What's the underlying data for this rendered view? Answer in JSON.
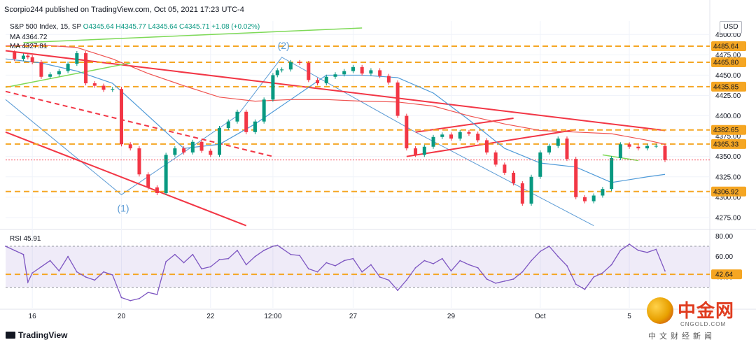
{
  "header": {
    "published": "Scorpio244 published on TradingView.com, Oct 05, 2021 17:23 UTC-4",
    "symbol": "S&P 500 Index, 15, SP",
    "ohlc": "O4345.64  H4345.77  L4345.64  C4345.71",
    "change": "+1.08 (+0.02%)",
    "ma1": "MA  4364.72",
    "ma2": "MA  4327.81",
    "currency": "USD"
  },
  "footer": {
    "brand": "TradingView"
  },
  "watermark": {
    "name": "中金网",
    "site": "CNGOLD.COM",
    "tagline": "中文财经新闻"
  },
  "annotations": {
    "wave1": "(1)",
    "wave2": "(2)"
  },
  "colors": {
    "up": "#089981",
    "down": "#f23645",
    "ma_blue": "#4e9ad8",
    "ma_red": "#ef5350",
    "trendline": "#f23645",
    "channel": "#5b9bd5",
    "support": "#f5a623",
    "rsi": "#7e57c2",
    "green_line": "#7ed957",
    "badge": "#f5a623"
  },
  "chart_data": [
    {
      "type": "line",
      "title": "S&P 500 Index, 15, SP",
      "price_axis": {
        "ylim": [
          4262,
          4508
        ],
        "ticks": [
          4500,
          4475,
          4450,
          4425,
          4400,
          4375,
          4350,
          4325,
          4300,
          4275
        ],
        "tick_labels": [
          "4500.00",
          "4475.00",
          "4450.00",
          "4425.00",
          "4400.00",
          "4375.00",
          "4350.00",
          "4325.00",
          "4300.00",
          "4275.00"
        ]
      },
      "x_axis": {
        "tick_labels": [
          "16",
          "20",
          "22",
          "12:00",
          "27",
          "29",
          "Oct",
          "5"
        ],
        "tick_positions": [
          3,
          13,
          23,
          30,
          39,
          50,
          60,
          70
        ]
      },
      "series": [
        {
          "name": "",
          "kind": "price",
          "x": [
            0,
            1,
            2,
            2.5,
            3,
            4,
            5,
            6,
            7,
            8,
            9,
            10,
            11,
            12,
            13,
            14,
            15,
            16,
            17,
            18,
            19,
            20,
            21,
            22,
            23,
            24,
            25,
            26,
            27,
            28,
            29,
            30,
            30.5,
            31,
            32,
            33,
            34,
            35,
            36,
            37,
            38,
            39,
            40,
            41,
            42,
            43,
            44,
            45,
            46,
            47,
            48,
            49,
            50,
            51,
            52,
            53,
            54,
            55,
            56,
            57,
            58,
            59,
            60,
            61,
            62,
            63,
            64,
            65,
            66,
            67,
            68,
            69,
            70,
            71,
            72,
            73,
            74
          ],
          "y": [
            4478,
            4470,
            4474,
            4472,
            4466,
            4448,
            4451,
            4455,
            4464,
            4477,
            4440,
            4437,
            4432,
            4433,
            4365,
            4360,
            4328,
            4312,
            4305,
            4352,
            4360,
            4355,
            4368,
            4357,
            4352,
            4385,
            4393,
            4405,
            4380,
            4393,
            4420,
            4450,
            4456,
            4457,
            4466,
            4465,
            4444,
            4440,
            4448,
            4451,
            4455,
            4460,
            4452,
            4456,
            4449,
            4441,
            4400,
            4360,
            4352,
            4362,
            4374,
            4377,
            4372,
            4380,
            4378,
            4370,
            4355,
            4340,
            4330,
            4317,
            4292,
            4325,
            4355,
            4363,
            4372,
            4347,
            4300,
            4295,
            4302,
            4310,
            4348,
            4365,
            4362,
            4360,
            4363,
            4363,
            4345.71
          ]
        },
        {
          "name": "",
          "kind": "ma_blue",
          "x": [
            0,
            4,
            8,
            12,
            16,
            20,
            24,
            28,
            32,
            36,
            40,
            44,
            48,
            52,
            56,
            60,
            64,
            68,
            72,
            74
          ],
          "y": [
            4470,
            4465,
            4455,
            4440,
            4400,
            4360,
            4365,
            4390,
            4420,
            4450,
            4450,
            4447,
            4428,
            4395,
            4360,
            4342,
            4337,
            4318,
            4325,
            4328
          ]
        },
        {
          "name": "",
          "kind": "ma_red",
          "x": [
            0,
            4,
            8,
            12,
            16,
            20,
            24,
            28,
            32,
            36,
            40,
            44,
            48,
            52,
            56,
            60,
            64,
            68,
            72,
            74
          ],
          "y": [
            4486,
            4487,
            4484,
            4470,
            4452,
            4437,
            4423,
            4418,
            4420,
            4420,
            4418,
            4417,
            4412,
            4400,
            4390,
            4382,
            4380,
            4378,
            4370,
            4365
          ]
        }
      ],
      "levels": [
        {
          "value": 4485.64,
          "label": "4485.64",
          "color": "#f5a623"
        },
        {
          "value": 4465.8,
          "label": "4465.80",
          "color": "#f5a623"
        },
        {
          "value": 4435.85,
          "label": "4435.85",
          "color": "#f5a623"
        },
        {
          "value": 4382.65,
          "label": "4382.65",
          "color": "#f5a623"
        },
        {
          "value": 4365.33,
          "label": "4365.33",
          "color": "#f5a623"
        },
        {
          "value": 4306.92,
          "label": "4306.92",
          "color": "#f5a623"
        }
      ],
      "last_price": {
        "value": 4345.71,
        "label": "4345.71"
      },
      "grid": true
    },
    {
      "type": "line",
      "title": "RSI",
      "label": "RSI  45.91",
      "ylim": [
        10,
        85
      ],
      "ticks": [
        80,
        60,
        40
      ],
      "tick_labels": [
        "80.00",
        "60.00",
        "40.00"
      ],
      "band": [
        30,
        70
      ],
      "level": {
        "value": 42.64,
        "label": "42.64"
      },
      "series": [
        {
          "name": "",
          "kind": "rsi",
          "x": [
            0,
            1,
            2,
            2.5,
            3,
            4,
            5,
            6,
            7,
            8,
            9,
            10,
            11,
            12,
            13,
            14,
            15,
            16,
            17,
            18,
            19,
            20,
            21,
            22,
            23,
            24,
            25,
            26,
            27,
            28,
            29,
            30,
            30.5,
            31,
            32,
            33,
            34,
            35,
            36,
            37,
            38,
            39,
            40,
            41,
            42,
            43,
            44,
            45,
            46,
            47,
            48,
            49,
            50,
            51,
            52,
            53,
            54,
            55,
            56,
            57,
            58,
            59,
            60,
            61,
            62,
            63,
            64,
            65,
            66,
            67,
            68,
            69,
            70,
            71,
            72,
            73,
            74
          ],
          "y": [
            70,
            66,
            62,
            35,
            44,
            50,
            56,
            46,
            60,
            45,
            40,
            37,
            45,
            42,
            20,
            17,
            19,
            25,
            23,
            55,
            62,
            54,
            62,
            48,
            50,
            57,
            58,
            66,
            52,
            60,
            66,
            70,
            71,
            68,
            62,
            61,
            48,
            45,
            54,
            51,
            56,
            58,
            45,
            52,
            40,
            37,
            27,
            37,
            49,
            56,
            53,
            58,
            46,
            56,
            52,
            49,
            38,
            34,
            36,
            38,
            45,
            56,
            65,
            70,
            60,
            51,
            33,
            28,
            40,
            44,
            52,
            66,
            72,
            66,
            64,
            67,
            45.91
          ]
        }
      ]
    }
  ]
}
